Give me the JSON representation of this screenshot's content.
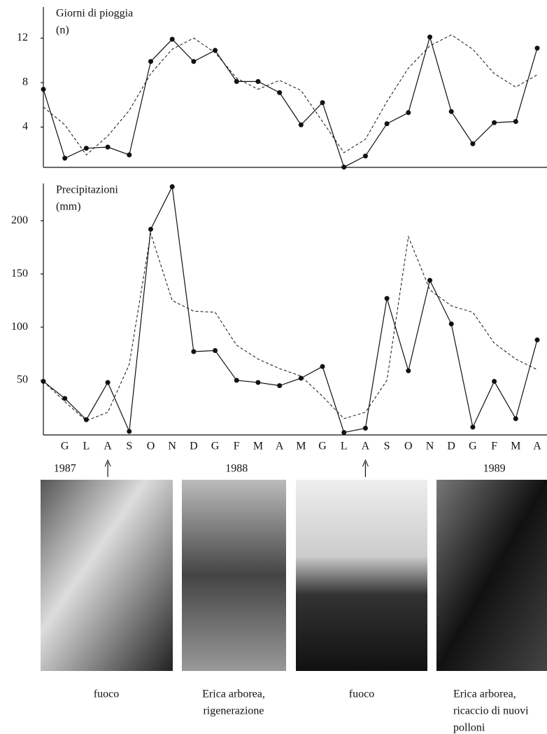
{
  "chart_data": [
    {
      "type": "line",
      "title": [
        "Giorni di pioggia",
        "(n)"
      ],
      "ylim": [
        0.5,
        14.8
      ],
      "yticks": [
        4,
        8,
        12
      ],
      "series": [
        {
          "color": "#111111",
          "style": "solid",
          "markers": true,
          "values": [
            7.4,
            1.2,
            2.1,
            2.2,
            1.5,
            9.9,
            11.9,
            9.9,
            10.9,
            8.1,
            8.1,
            7.1,
            4.2,
            6.2,
            0.4,
            1.4,
            4.3,
            5.3,
            12.1,
            5.4,
            2.5,
            4.4,
            4.5,
            11.1
          ]
        },
        {
          "color": "#111111",
          "style": "dashed",
          "markers": false,
          "values": [
            5.8,
            4.2,
            1.5,
            3.2,
            5.5,
            8.8,
            11.0,
            12.0,
            10.7,
            8.4,
            7.4,
            8.2,
            7.3,
            4.5,
            1.7,
            2.9,
            6.3,
            9.3,
            11.3,
            12.3,
            11.0,
            8.8,
            7.6,
            8.7
          ]
        }
      ]
    },
    {
      "type": "line",
      "title": [
        "Precipitazioni",
        "(mm)"
      ],
      "categories": [
        null,
        "G",
        "L",
        "A",
        "S",
        "O",
        "N",
        "D",
        "G",
        "F",
        "M",
        "A",
        "M",
        "G",
        "L",
        "A",
        "S",
        "O",
        "N",
        "D",
        "G",
        "F",
        "M",
        "A"
      ],
      "ylim": [
        0,
        235
      ],
      "yticks": [
        50,
        100,
        150,
        200
      ],
      "series": [
        {
          "color": "#111111",
          "style": "solid",
          "markers": true,
          "values": [
            49,
            33,
            13,
            48,
            2,
            192,
            232,
            77,
            78,
            50,
            48,
            45,
            52,
            63,
            1,
            5,
            127,
            59,
            144,
            103,
            6,
            49,
            14,
            88
          ]
        },
        {
          "color": "#111111",
          "style": "dashed",
          "markers": false,
          "values": [
            49,
            30,
            12,
            20,
            65,
            188,
            125,
            115,
            114,
            83,
            70,
            61,
            54,
            35,
            14,
            20,
            50,
            185,
            135,
            120,
            114,
            85,
            70,
            60
          ]
        }
      ]
    }
  ],
  "years": [
    {
      "label": "1987",
      "index": 1
    },
    {
      "label": "1988",
      "index": 9
    },
    {
      "label": "1989",
      "index": 21
    }
  ],
  "events": [
    3,
    15
  ],
  "photos": [
    {
      "caption": [
        "fuoco"
      ]
    },
    {
      "caption": [
        "Erica arborea,",
        "rigenerazione"
      ]
    },
    {
      "caption": [
        "fuoco"
      ]
    },
    {
      "caption": [
        "Erica arborea,",
        "ricaccio di nuovi",
        "polloni"
      ]
    }
  ]
}
